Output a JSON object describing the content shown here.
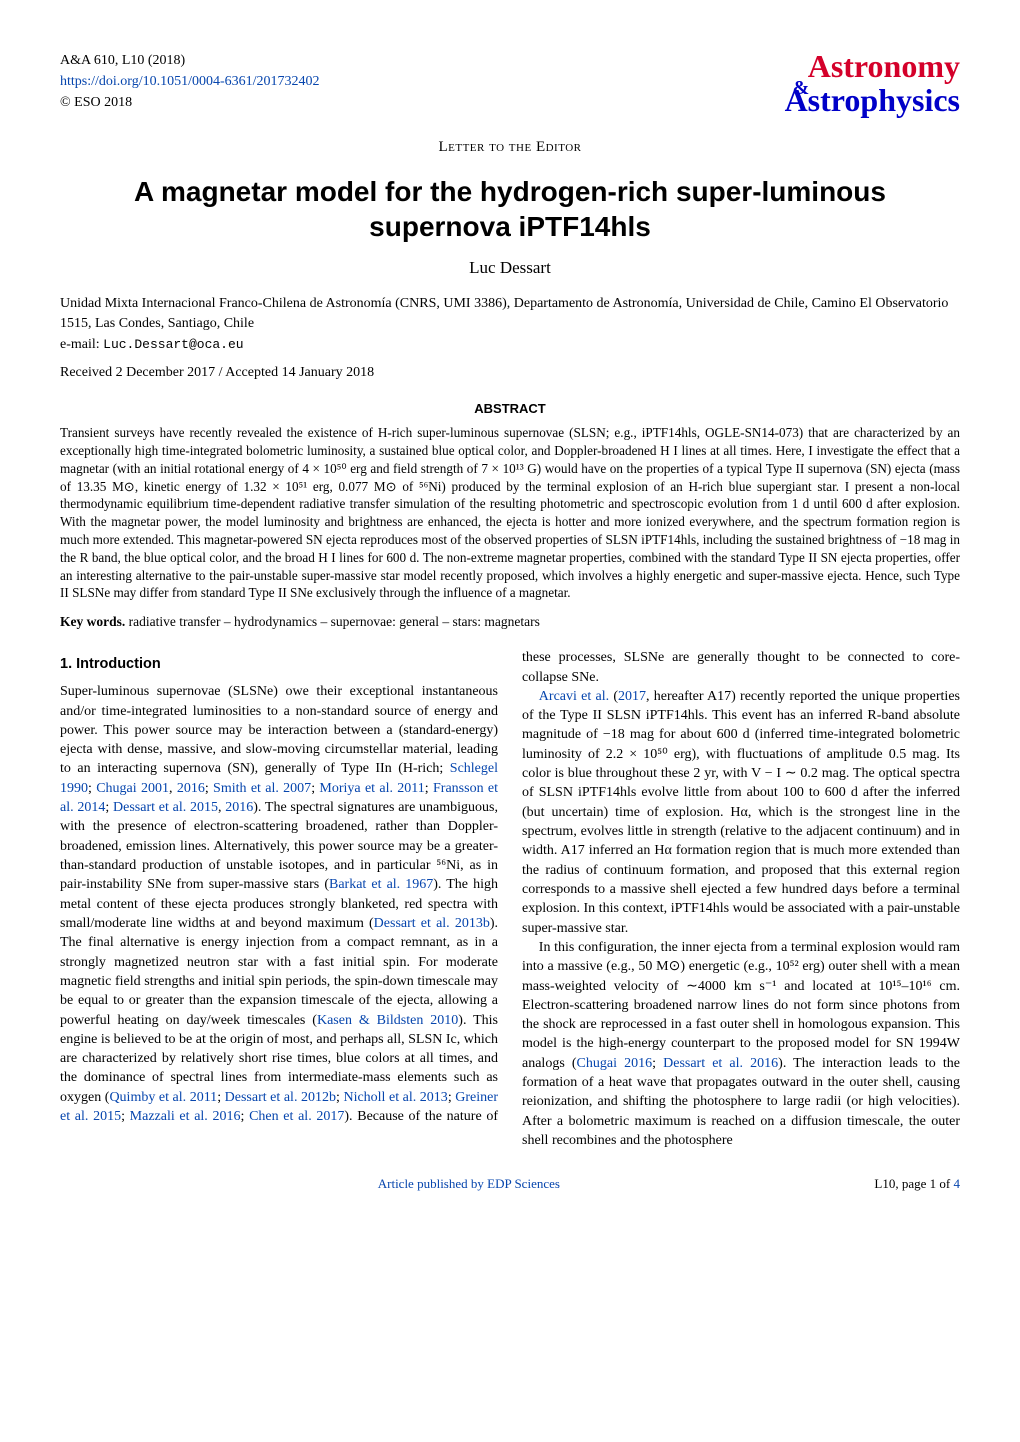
{
  "colors": {
    "link": "#0645ad",
    "astro_red": "#d4002a",
    "astro_blue": "#0000c8",
    "text": "#000000",
    "background": "#ffffff"
  },
  "header": {
    "journal_ref": "A&A 610, L10 (2018)",
    "doi_url": "https://doi.org/10.1051/0004-6361/201732402",
    "copyright": "© ESO 2018",
    "logo_top": "Astronomy",
    "logo_amp": "&",
    "logo_bottom": "Astrophysics"
  },
  "letter_line": "Letter to the Editor",
  "title_line1": "A magnetar model for the hydrogen-rich super-luminous",
  "title_line2": "supernova iPTF14hls",
  "author": "Luc Dessart",
  "affiliation": "Unidad Mixta Internacional Franco-Chilena de Astronomía (CNRS, UMI 3386), Departamento de Astronomía, Universidad de Chile, Camino El Observatorio 1515, Las Condes, Santiago, Chile",
  "email_label": "e-mail: ",
  "email": "Luc.Dessart@oca.eu",
  "dates": "Received 2 December 2017 / Accepted 14 January 2018",
  "abstract_head": "ABSTRACT",
  "abstract": "Transient surveys have recently revealed the existence of H-rich super-luminous supernovae (SLSN; e.g., iPTF14hls, OGLE-SN14-073) that are characterized by an exceptionally high time-integrated bolometric luminosity, a sustained blue optical color, and Doppler-broadened H I lines at all times. Here, I investigate the effect that a magnetar (with an initial rotational energy of 4 × 10⁵⁰ erg and field strength of 7 × 10¹³ G) would have on the properties of a typical Type II supernova (SN) ejecta (mass of 13.35 M⊙, kinetic energy of 1.32 × 10⁵¹ erg, 0.077 M⊙ of ⁵⁶Ni) produced by the terminal explosion of an H-rich blue supergiant star. I present a non-local thermodynamic equilibrium time-dependent radiative transfer simulation of the resulting photometric and spectroscopic evolution from 1 d until 600 d after explosion. With the magnetar power, the model luminosity and brightness are enhanced, the ejecta is hotter and more ionized everywhere, and the spectrum formation region is much more extended. This magnetar-powered SN ejecta reproduces most of the observed properties of SLSN iPTF14hls, including the sustained brightness of −18 mag in the R band, the blue optical color, and the broad H I lines for 600 d. The non-extreme magnetar properties, combined with the standard Type II SN ejecta properties, offer an interesting alternative to the pair-unstable super-massive star model recently proposed, which involves a highly energetic and super-massive ejecta. Hence, such Type II SLSNe may differ from standard Type II SNe exclusively through the influence of a magnetar.",
  "keywords_label": "Key words.",
  "keywords": " radiative transfer – hydrodynamics – supernovae: general – stars: magnetars",
  "section1_head": "1. Introduction",
  "intro_p1a": "Super-luminous supernovae (SLSNe) owe their exceptional instantaneous and/or time-integrated luminosities to a non-standard source of energy and power. This power source may be interaction between a (standard-energy) ejecta with dense, massive, and slow-moving circumstellar material, leading to an interacting supernova (SN), generally of Type IIn (H-rich; ",
  "intro_p1b": "). The spectral signatures are unambiguous, with the presence of electron-scattering broadened, rather than Doppler-broadened, emission lines. Alternatively, this power source may be a greater-than-standard production of unstable isotopes, and in particular ⁵⁶Ni, as in pair-instability SNe from super-massive stars (",
  "intro_p1c": "). The high metal content of these ejecta produces strongly blanketed, red spectra with small/moderate line widths at and beyond maximum (",
  "intro_p1d": "). The final alternative is energy injection from a compact remnant, as in a strongly magnetized neutron star with a fast initial spin. For moderate magnetic field strengths and initial spin periods, the spin-down timescale may be equal to or greater than the expansion timescale of the ejecta, allowing a powerful heating on day/week timescales (",
  "intro_p1e": "). This engine is believed to be at the origin of most, and perhaps all, SLSN Ic, which are characterized by relatively short rise times, blue colors at all times, and the dominance of spectral lines from intermediate-mass elements such as oxygen (",
  "intro_p1f": "). Because of the nature of ",
  "cites": {
    "schlegel": "Schlegel 1990",
    "chugai01": "Chugai 2001",
    "chugai16": "2016",
    "smith": "Smith et al. 2007",
    "moriya": "Moriya et al. 2011",
    "fransson": "Fransson et al. 2014",
    "dessart15": "Dessart et al. 2015",
    "dessart16_alone": "2016",
    "barkat": "Barkat et al. 1967",
    "dessart13b": "Dessart et al. 2013b",
    "kasen": "Kasen & Bildsten 2010",
    "quimby": "Quimby et al. 2011",
    "dessart12b": "Dessart et al. 2012b",
    "nicholl": "Nicholl et al. 2013",
    "greiner": "Greiner et al. 2015",
    "mazzali": "Mazzali et al. 2016",
    "chen": "Chen et al. 2017",
    "arcavi": "Arcavi et al.",
    "arcavi_year": "2017",
    "chugai16_full": "Chugai 2016",
    "dessart16_full": "Dessart et al. 2016"
  },
  "col2_p0": "these processes, SLSNe are generally thought to be connected to core-collapse SNe.",
  "col2_p1a": ", hereafter A17) recently reported the unique properties of the Type II SLSN iPTF14hls. This event has an inferred R-band absolute magnitude of −18 mag for about 600 d (inferred time-integrated bolometric luminosity of 2.2 × 10⁵⁰ erg), with fluctuations of amplitude 0.5 mag. Its color is blue throughout these 2 yr, with V − I ∼ 0.2 mag. The optical spectra of SLSN iPTF14hls evolve little from about 100 to 600 d after the inferred (but uncertain) time of explosion. Hα, which is the strongest line in the spectrum, evolves little in strength (relative to the adjacent continuum) and in width. A17 inferred an Hα formation region that is much more extended than the radius of continuum formation, and proposed that this external region corresponds to a massive shell ejected a few hundred days before a terminal explosion. In this context, iPTF14hls would be associated with a pair-unstable super-massive star.",
  "col2_p2a": "In this configuration, the inner ejecta from a terminal explosion would ram into a massive (e.g., 50 M⊙) energetic (e.g., 10⁵² erg) outer shell with a mean mass-weighted velocity of ∼4000 km s⁻¹ and located at 10¹⁵–10¹⁶ cm. Electron-scattering broadened narrow lines do not form since photons from the shock are reprocessed in a fast outer shell in homologous expansion. This model is the high-energy counterpart to the proposed model for SN 1994W analogs (",
  "col2_p2b": "). The interaction leads to the formation of a heat wave that propagates outward in the outer shell, causing reionization, and shifting the photosphere to large radii (or high velocities). After a bolometric maximum is reached on a diffusion timescale, the outer shell recombines and the photosphere",
  "footer": {
    "center": "Article published by EDP Sciences",
    "right_prefix": "L10, page 1 of ",
    "right_total": "4"
  }
}
